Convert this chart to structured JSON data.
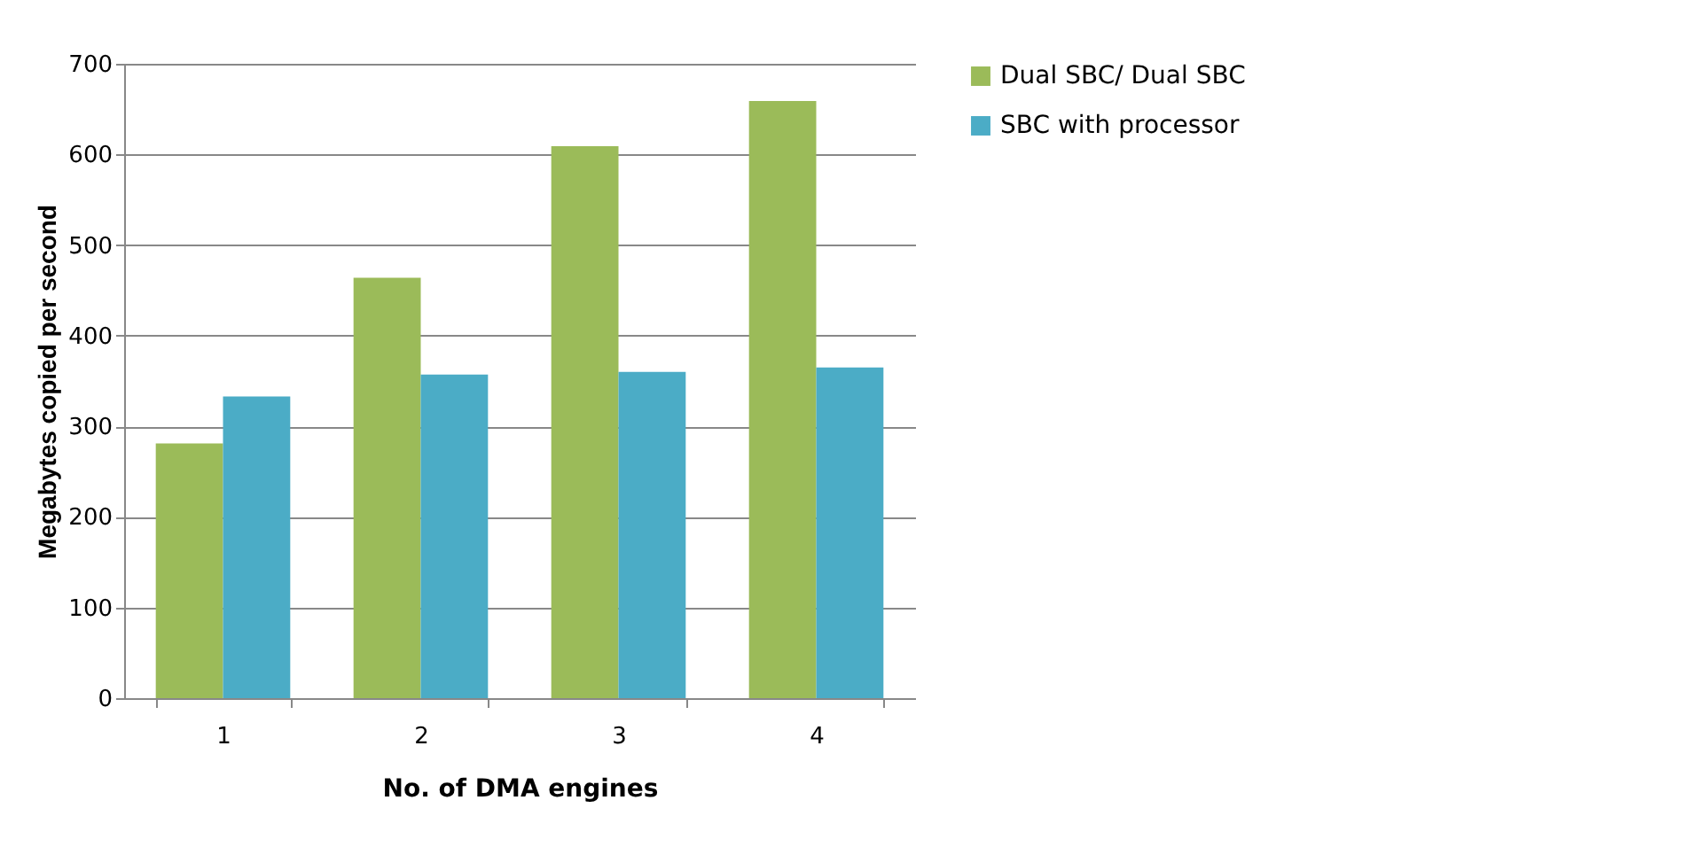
{
  "chart_data": {
    "type": "bar",
    "xlabel": "No. of DMA engines",
    "ylabel": "Megabytes copied per second",
    "categories": [
      "1",
      "2",
      "3",
      "4"
    ],
    "series": [
      {
        "name": "Dual SBC/ Dual SBC",
        "color": "#9bbb59",
        "values": [
          281,
          464,
          609,
          659
        ]
      },
      {
        "name": "SBC with processor",
        "color": "#4bacc6",
        "values": [
          333,
          357,
          360,
          365
        ]
      }
    ],
    "ylim": [
      0,
      700
    ],
    "yticks": [
      0,
      100,
      200,
      300,
      400,
      500,
      600,
      700
    ],
    "grid": "y",
    "legend": "right"
  }
}
